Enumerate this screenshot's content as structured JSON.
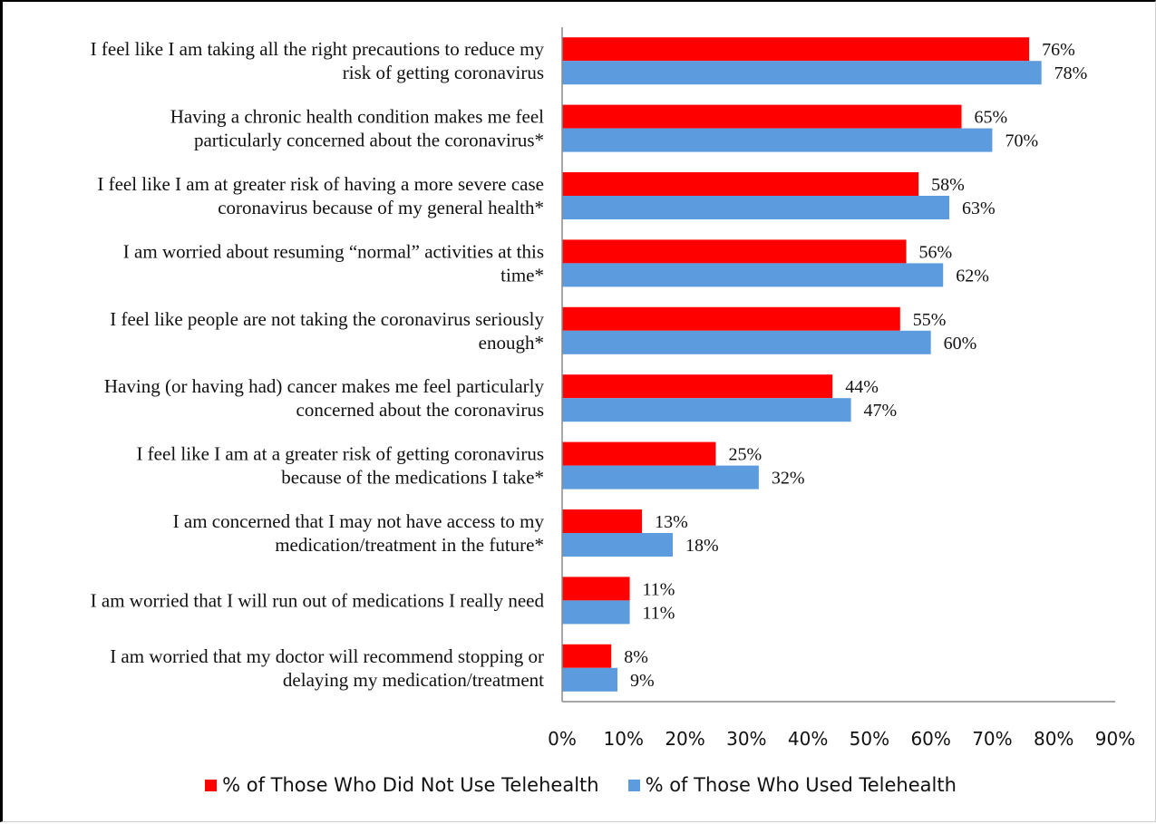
{
  "chart_data": {
    "type": "bar",
    "orientation": "horizontal",
    "categories": [
      [
        "I feel like I am taking all the right precautions to reduce my",
        "risk of getting coronavirus"
      ],
      [
        "Having a chronic health condition makes me feel",
        "particularly concerned about the coronavirus*"
      ],
      [
        "I feel like I am at greater risk of having a more severe case",
        "coronavirus because of my general health*"
      ],
      [
        "I am worried about resuming “normal” activities at this",
        "time*"
      ],
      [
        "I feel like people are not taking the coronavirus seriously",
        "enough*"
      ],
      [
        "Having (or having had) cancer makes me feel particularly",
        "concerned about the coronavirus"
      ],
      [
        "I feel like I am at a greater risk of getting coronavirus",
        "because of the medications I take*"
      ],
      [
        "I am concerned that I may not have access to my",
        "medication/treatment in the future*"
      ],
      [
        "I am worried that I will run out of medications I really need"
      ],
      [
        "I am worried that my doctor will recommend stopping or",
        "delaying my medication/treatment"
      ]
    ],
    "series": [
      {
        "name": "% of Those Who Did Not Use Telehealth",
        "color": "#ff0000",
        "values": [
          76,
          65,
          58,
          56,
          55,
          44,
          25,
          13,
          11,
          8
        ],
        "labels": [
          "76%",
          "65%",
          "58%",
          "56%",
          "55%",
          "44%",
          "25%",
          "13%",
          "11%",
          "8%"
        ]
      },
      {
        "name": "% of Those Who Used Telehealth",
        "color": "#5b9bde",
        "values": [
          78,
          70,
          63,
          62,
          60,
          47,
          32,
          18,
          11,
          9
        ],
        "labels": [
          "78%",
          "70%",
          "63%",
          "62%",
          "60%",
          "47%",
          "32%",
          "18%",
          "11%",
          "9%"
        ]
      }
    ],
    "xlim": [
      0,
      90
    ],
    "xticks": [
      "0%",
      "10%",
      "20%",
      "30%",
      "40%",
      "50%",
      "60%",
      "70%",
      "80%",
      "90%"
    ],
    "legend_position": "bottom",
    "grid": false
  }
}
